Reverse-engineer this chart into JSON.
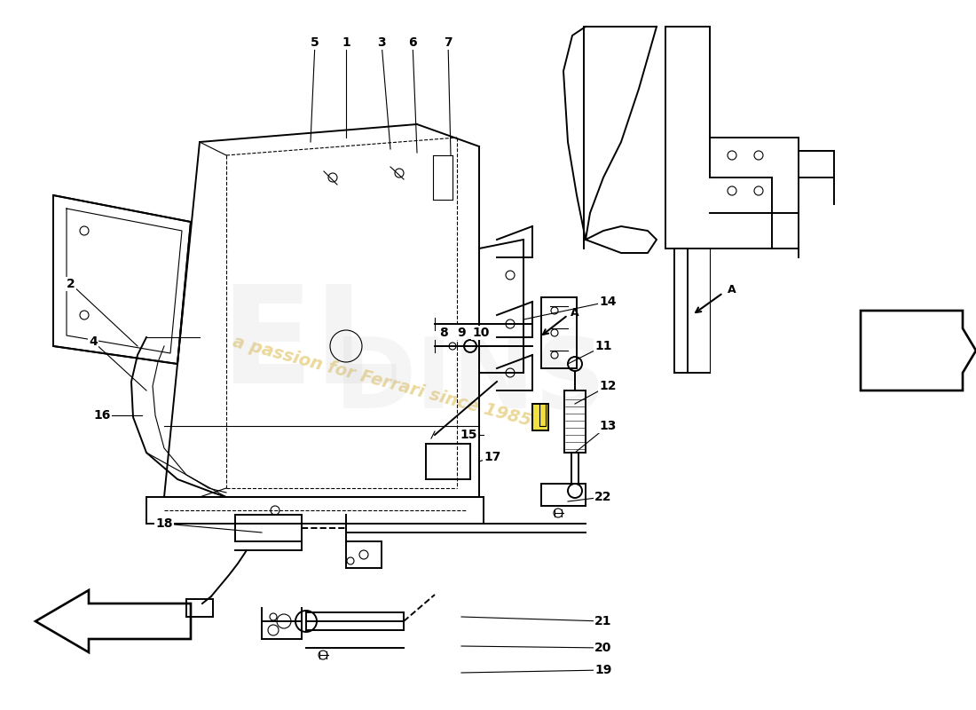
{
  "background_color": "#ffffff",
  "line_color": "#000000",
  "label_color": "#000000",
  "watermark_color": "#d4a820",
  "watermark_text": "a passion for Ferrari since 1985",
  "watermark_rotation": -15,
  "watermark_alpha": 0.45,
  "label_fontsize": 10,
  "lw_main": 1.4,
  "lw_thin": 0.8,
  "labels": [
    [
      1,
      390,
      48,
      390,
      155
    ],
    [
      2,
      80,
      320,
      155,
      390
    ],
    [
      3,
      430,
      48,
      440,
      168
    ],
    [
      4,
      105,
      385,
      165,
      440
    ],
    [
      5,
      355,
      48,
      350,
      160
    ],
    [
      6,
      465,
      48,
      470,
      172
    ],
    [
      7,
      505,
      48,
      508,
      175
    ],
    [
      8,
      500,
      375,
      505,
      378
    ],
    [
      9,
      520,
      375,
      525,
      378
    ],
    [
      10,
      542,
      375,
      545,
      378
    ],
    [
      11,
      680,
      390,
      640,
      410
    ],
    [
      12,
      685,
      435,
      648,
      455
    ],
    [
      13,
      685,
      480,
      648,
      510
    ],
    [
      14,
      685,
      340,
      590,
      360
    ],
    [
      15,
      528,
      490,
      545,
      490
    ],
    [
      16,
      115,
      468,
      160,
      468
    ],
    [
      17,
      555,
      515,
      540,
      520
    ],
    [
      18,
      185,
      590,
      295,
      600
    ],
    [
      19,
      680,
      755,
      520,
      758
    ],
    [
      20,
      680,
      730,
      520,
      728
    ],
    [
      21,
      680,
      700,
      520,
      695
    ],
    [
      22,
      680,
      560,
      640,
      565
    ]
  ]
}
